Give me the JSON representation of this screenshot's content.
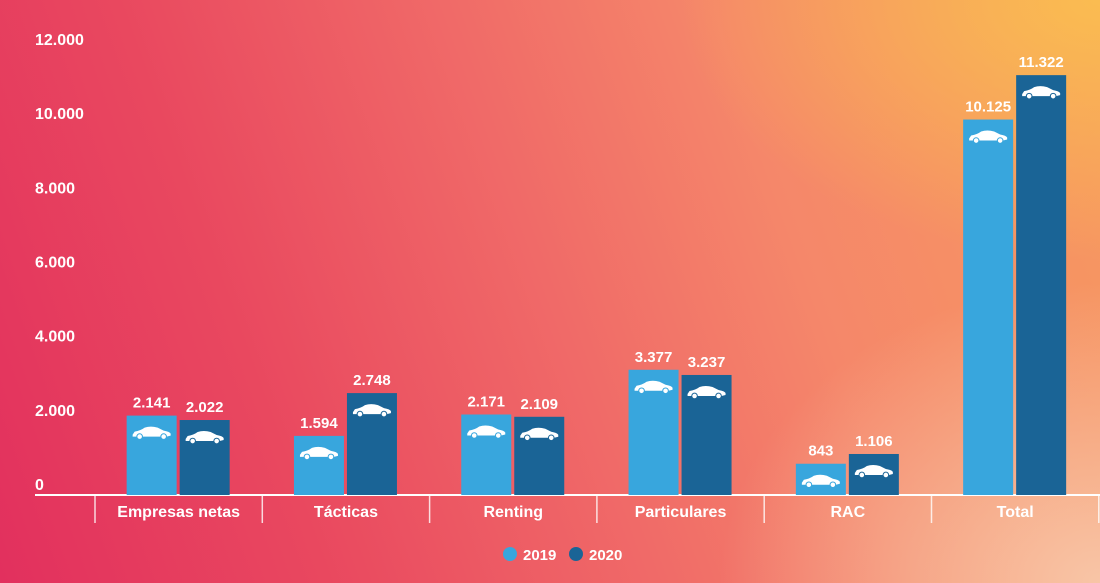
{
  "chart_data": {
    "type": "bar",
    "categories": [
      "Empresas netas",
      "Tácticas",
      "Renting",
      "Particulares",
      "RAC",
      "Total"
    ],
    "series": [
      {
        "name": "2019",
        "values": [
          2141,
          1594,
          2171,
          3377,
          843,
          10125
        ],
        "labels": [
          "2.141",
          "1.594",
          "2.171",
          "3.377",
          "843",
          "10.125"
        ],
        "color": "#38a6dd"
      },
      {
        "name": "2020",
        "values": [
          2022,
          2748,
          2109,
          3237,
          1106,
          11322
        ],
        "labels": [
          "2.022",
          "2.748",
          "2.109",
          "3.237",
          "1.106",
          "11.322"
        ],
        "color": "#1a6496"
      }
    ],
    "ylim": [
      0,
      12000
    ],
    "yticks": [
      0,
      2000,
      4000,
      6000,
      8000,
      10000,
      12000
    ],
    "ytick_labels": [
      "0",
      "2.000",
      "4.000",
      "6.000",
      "8.000",
      "10.000",
      "12.000"
    ],
    "grid": false,
    "legend": "bottom-center",
    "bar_icon": "car-icon",
    "title": "",
    "xlabel": "",
    "ylabel": ""
  }
}
